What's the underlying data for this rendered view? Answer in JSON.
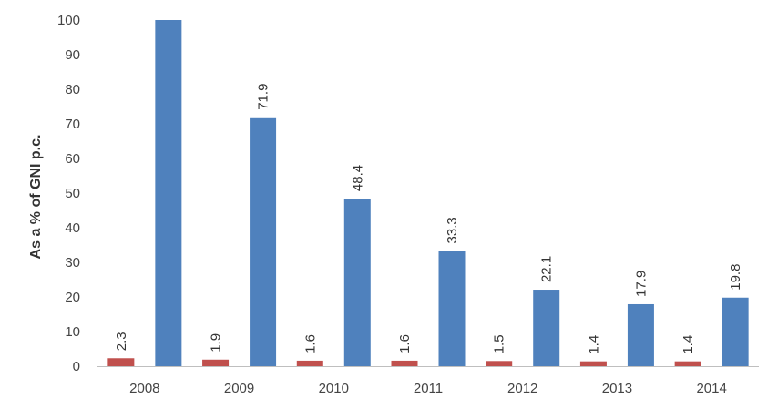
{
  "chart_data": {
    "type": "bar",
    "title": "",
    "xlabel": "",
    "ylabel": "As a % of GNI p.c.",
    "ylim": [
      0,
      100
    ],
    "yticks": [
      0,
      10,
      20,
      30,
      40,
      50,
      60,
      70,
      80,
      90,
      100
    ],
    "categories": [
      "2008",
      "2009",
      "2010",
      "2011",
      "2012",
      "2013",
      "2014"
    ],
    "series": [
      {
        "color": "#c0504d",
        "values": [
          2.3,
          1.9,
          1.6,
          1.6,
          1.5,
          1.4,
          1.4
        ],
        "data_labels": [
          "2.3",
          "1.9",
          "1.6",
          "1.6",
          "1.5",
          "1.4",
          "1.4"
        ]
      },
      {
        "color": "#4f81bd",
        "values": [
          100,
          71.9,
          48.4,
          33.3,
          22.1,
          17.9,
          19.8
        ],
        "data_labels": [
          "",
          "71.9",
          "48.4",
          "33.3",
          "22.1",
          "17.9",
          "19.8"
        ]
      }
    ],
    "grid": false,
    "legend": "none"
  }
}
